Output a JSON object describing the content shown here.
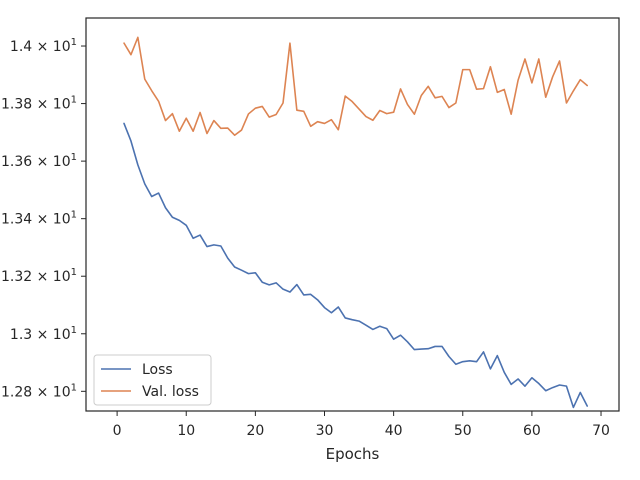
{
  "chart_data": {
    "type": "line",
    "title": "",
    "xlabel": "Epochs",
    "ylabel": "",
    "xlim": [
      -4.5,
      72.6
    ],
    "ylim": [
      12.7316,
      14.0974
    ],
    "x_ticks": [
      {
        "value": 0,
        "label": "0"
      },
      {
        "value": 10,
        "label": "10"
      },
      {
        "value": 20,
        "label": "20"
      },
      {
        "value": 30,
        "label": "30"
      },
      {
        "value": 40,
        "label": "40"
      },
      {
        "value": 50,
        "label": "50"
      },
      {
        "value": 60,
        "label": "60"
      },
      {
        "value": 70,
        "label": "70"
      }
    ],
    "y_ticks": [
      {
        "value": 12.8,
        "base": "1.28 × 10",
        "exp": "1"
      },
      {
        "value": 13.0,
        "base": "1.3 × 10",
        "exp": "1"
      },
      {
        "value": 13.2,
        "base": "1.32 × 10",
        "exp": "1"
      },
      {
        "value": 13.4,
        "base": "1.34 × 10",
        "exp": "1"
      },
      {
        "value": 13.6,
        "base": "1.36 × 10",
        "exp": "1"
      },
      {
        "value": 13.8,
        "base": "1.38 × 10",
        "exp": "1"
      },
      {
        "value": 14.0,
        "base": "1.4 × 10",
        "exp": "1"
      }
    ],
    "grid": false,
    "legend_position": "lower-left",
    "x": [
      1,
      2,
      3,
      4,
      5,
      6,
      7,
      8,
      9,
      10,
      11,
      12,
      13,
      14,
      15,
      16,
      17,
      18,
      19,
      20,
      21,
      22,
      23,
      24,
      25,
      26,
      27,
      28,
      29,
      30,
      31,
      32,
      33,
      34,
      35,
      36,
      37,
      38,
      39,
      40,
      41,
      42,
      43,
      44,
      45,
      46,
      47,
      48,
      49,
      50,
      51,
      52,
      53,
      54,
      55,
      56,
      57,
      58,
      59,
      60,
      61,
      62,
      63,
      64,
      65,
      66,
      67,
      68
    ],
    "series": [
      {
        "name": "Loss",
        "color": "#4c72b0",
        "values": [
          13.731,
          13.67,
          13.587,
          13.521,
          13.477,
          13.489,
          13.438,
          13.405,
          13.394,
          13.377,
          13.332,
          13.343,
          13.303,
          13.309,
          13.305,
          13.263,
          13.232,
          13.221,
          13.209,
          13.212,
          13.179,
          13.17,
          13.177,
          13.155,
          13.145,
          13.171,
          13.135,
          13.137,
          13.118,
          13.091,
          13.073,
          13.093,
          13.055,
          13.049,
          13.044,
          13.03,
          13.015,
          13.026,
          13.018,
          12.981,
          12.995,
          12.972,
          12.945,
          12.947,
          12.948,
          12.956,
          12.956,
          12.921,
          12.894,
          12.903,
          12.906,
          12.903,
          12.937,
          12.878,
          12.924,
          12.866,
          12.824,
          12.843,
          12.818,
          12.847,
          12.827,
          12.802,
          12.813,
          12.822,
          12.818,
          12.744,
          12.796,
          12.749
        ]
      },
      {
        "name": "Val. loss",
        "color": "#dd8452",
        "values": [
          14.01,
          13.97,
          14.03,
          13.885,
          13.845,
          13.808,
          13.741,
          13.765,
          13.704,
          13.749,
          13.704,
          13.769,
          13.696,
          13.741,
          13.714,
          13.715,
          13.69,
          13.708,
          13.764,
          13.784,
          13.79,
          13.753,
          13.762,
          13.802,
          14.01,
          13.777,
          13.773,
          13.721,
          13.737,
          13.731,
          13.744,
          13.709,
          13.826,
          13.807,
          13.781,
          13.755,
          13.742,
          13.776,
          13.765,
          13.77,
          13.851,
          13.797,
          13.763,
          13.828,
          13.86,
          13.82,
          13.825,
          13.786,
          13.802,
          13.918,
          13.918,
          13.85,
          13.852,
          13.928,
          13.839,
          13.849,
          13.763,
          13.881,
          13.955,
          13.872,
          13.955,
          13.822,
          13.893,
          13.948,
          13.802,
          13.844,
          13.883,
          13.863
        ]
      }
    ]
  }
}
